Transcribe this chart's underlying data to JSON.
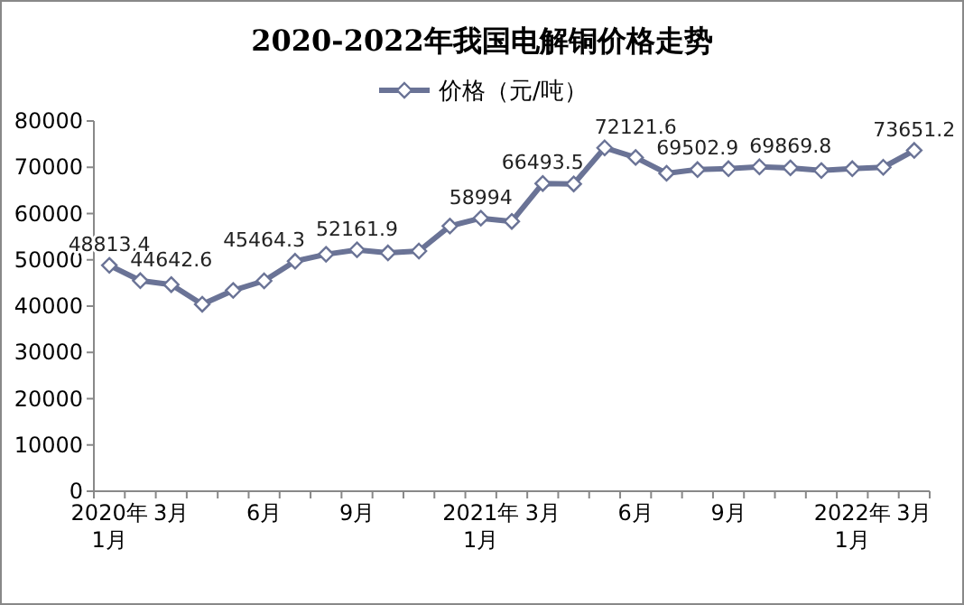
{
  "chart_data": {
    "type": "line",
    "title": "2020-2022年我国电解铜价格走势",
    "categories": [
      "2020年\n1月",
      null,
      "3月",
      null,
      null,
      "6月",
      null,
      null,
      "9月",
      null,
      null,
      null,
      "2021年\n1月",
      null,
      "3月",
      null,
      null,
      "6月",
      null,
      null,
      "9月",
      null,
      null,
      null,
      "2022年\n1月",
      null,
      "3月"
    ],
    "series": [
      {
        "name": "价格（元/吨）",
        "color": "#6a7396",
        "values": [
          48813.4,
          45500,
          44642.6,
          40400,
          43400,
          45464.3,
          49700,
          51200,
          52161.9,
          51500,
          51900,
          57300,
          58994,
          58300,
          66493.5,
          66400,
          74200,
          72121.6,
          68700,
          69502.9,
          69700,
          70100,
          69869.8,
          69300,
          69700,
          70000,
          73651.2
        ],
        "value_labels": [
          "48813.4",
          null,
          "44642.6",
          null,
          null,
          "45464.3",
          null,
          null,
          "52161.9",
          null,
          null,
          null,
          "58994",
          null,
          "66493.5",
          null,
          null,
          "72121.6",
          null,
          "69502.9",
          null,
          null,
          "69869.8",
          null,
          null,
          null,
          "73651.2"
        ]
      }
    ],
    "ylim": [
      0,
      80000
    ],
    "yticks": [
      0,
      10000,
      20000,
      30000,
      40000,
      50000,
      60000,
      70000,
      80000
    ],
    "grid": false,
    "legend": "top",
    "marker": "diamond",
    "line_style": "solid"
  }
}
